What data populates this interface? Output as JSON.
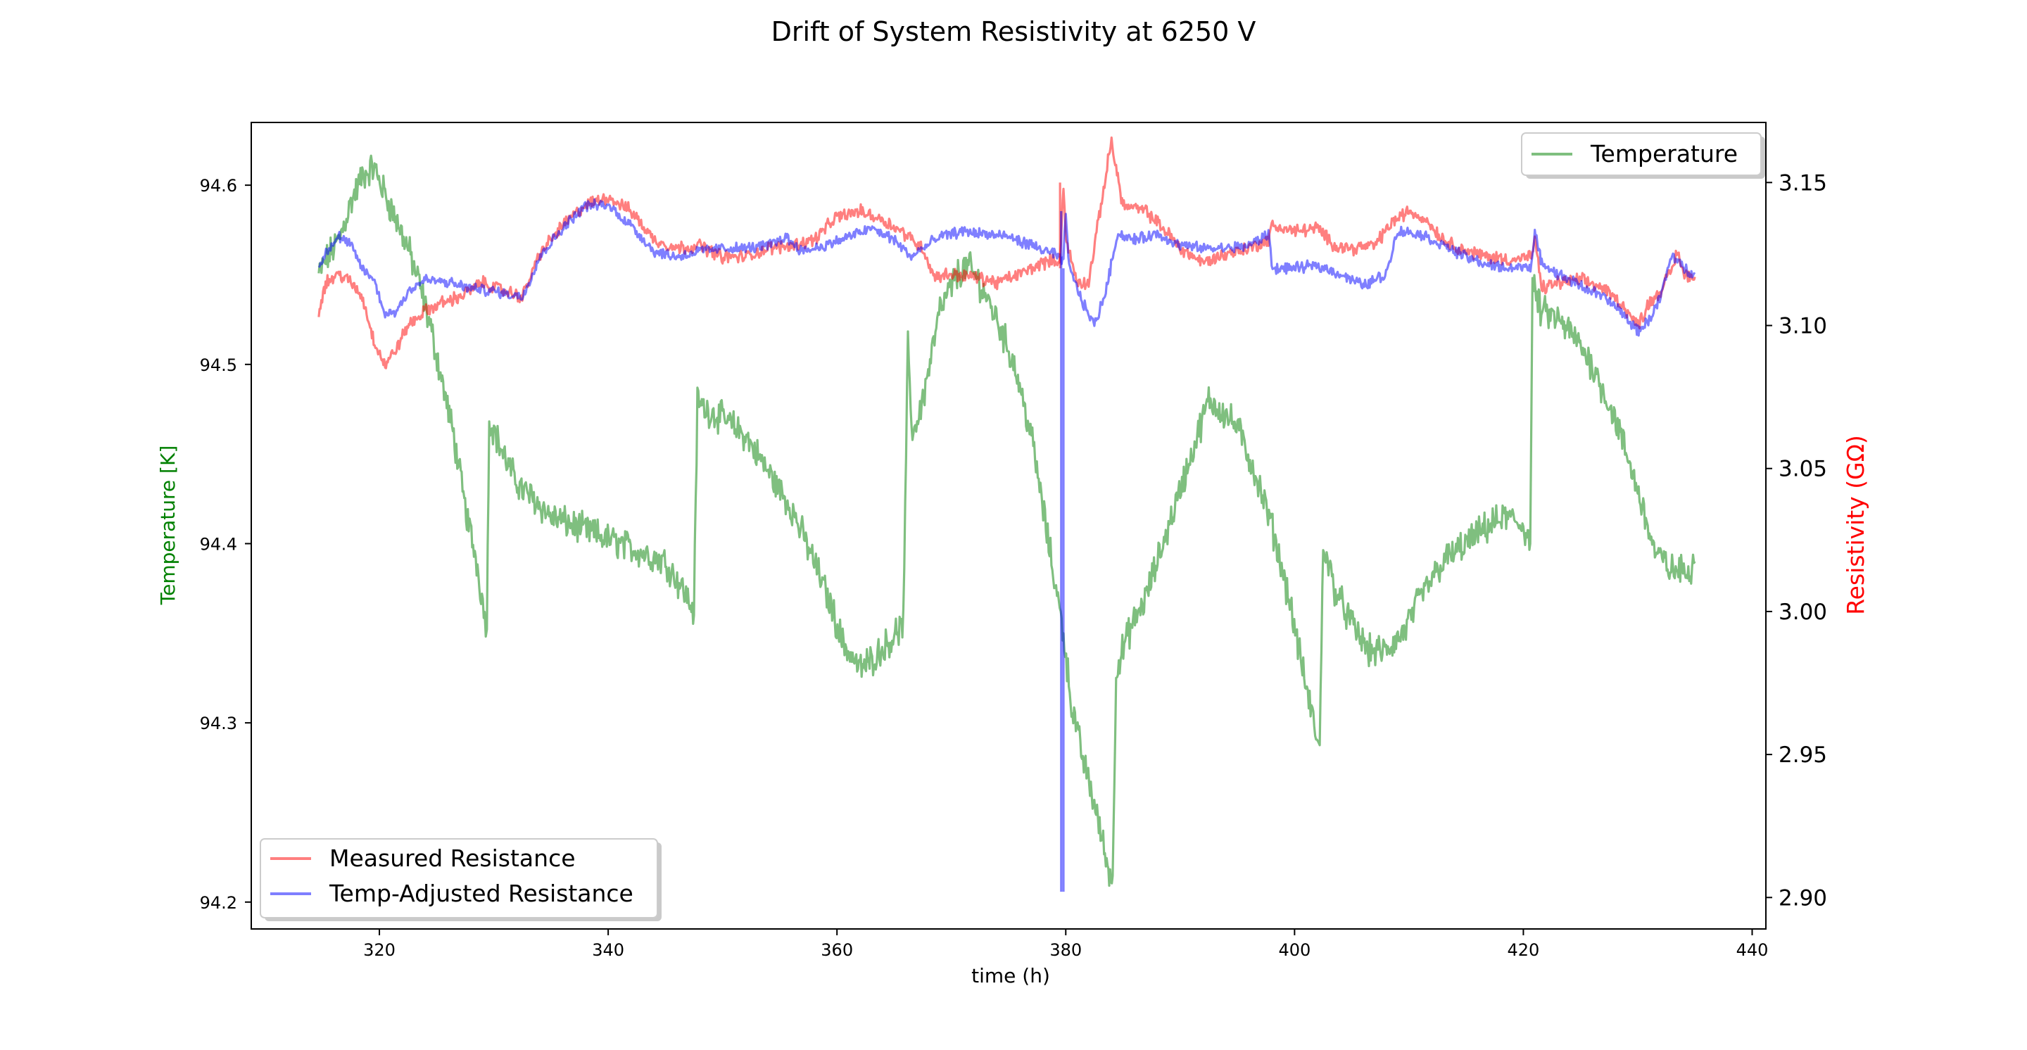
{
  "chart_data": {
    "type": "line",
    "title": "Drift of System Resistivity at 6250 V",
    "xlabel": "time (h)",
    "xlim": [
      308.8,
      441.2
    ],
    "xticks": [
      320,
      340,
      360,
      380,
      400,
      420,
      440
    ],
    "grid": false,
    "left_axis": {
      "label": "Temperature [K]",
      "label_color": "#008000",
      "ylim": [
        94.185,
        94.635
      ],
      "ticks": [
        94.2,
        94.3,
        94.4,
        94.5,
        94.6
      ]
    },
    "right_axis": {
      "label": "Resistivity (GΩ)",
      "label_color": "#ff0000",
      "ylim": [
        2.889,
        3.171
      ],
      "ticks": [
        2.9,
        2.95,
        3.0,
        3.05,
        3.1,
        3.15
      ],
      "tick_labels": [
        "2.90",
        "2.95",
        "3.00",
        "3.05",
        "3.10",
        "3.15"
      ]
    },
    "legends": [
      {
        "placement": "upper right",
        "entries": [
          "Temperature"
        ]
      },
      {
        "placement": "lower left",
        "entries": [
          "Measured Resistance",
          "Temp-Adjusted Resistance"
        ]
      }
    ],
    "series": [
      {
        "name": "Temperature",
        "axis": "left",
        "color": "#008000",
        "alpha": 0.5,
        "noise": 0.007,
        "points": [
          [
            314.7,
            94.55
          ],
          [
            315.5,
            94.56
          ],
          [
            316.5,
            94.57
          ],
          [
            317.5,
            94.59
          ],
          [
            318.5,
            94.605
          ],
          [
            319.5,
            94.61
          ],
          [
            320.5,
            94.595
          ],
          [
            321.5,
            94.58
          ],
          [
            322.5,
            94.565
          ],
          [
            323.5,
            94.545
          ],
          [
            324.5,
            94.52
          ],
          [
            325.5,
            94.49
          ],
          [
            326.5,
            94.46
          ],
          [
            327.5,
            94.42
          ],
          [
            328.5,
            94.39
          ],
          [
            329.2,
            94.36
          ],
          [
            329.4,
            94.355
          ],
          [
            329.6,
            94.47
          ],
          [
            330.5,
            94.455
          ],
          [
            331.5,
            94.44
          ],
          [
            332.5,
            94.43
          ],
          [
            333.5,
            94.425
          ],
          [
            335,
            94.415
          ],
          [
            337,
            94.41
          ],
          [
            339,
            94.405
          ],
          [
            341,
            94.4
          ],
          [
            343,
            94.395
          ],
          [
            345,
            94.39
          ],
          [
            346.5,
            94.375
          ],
          [
            347.5,
            94.362
          ],
          [
            347.8,
            94.48
          ],
          [
            348.5,
            94.475
          ],
          [
            350,
            94.47
          ],
          [
            352,
            94.46
          ],
          [
            354,
            94.44
          ],
          [
            356,
            94.42
          ],
          [
            358,
            94.39
          ],
          [
            359.5,
            94.365
          ],
          [
            360.5,
            94.345
          ],
          [
            362,
            94.33
          ],
          [
            363,
            94.335
          ],
          [
            364.5,
            94.345
          ],
          [
            365.8,
            94.355
          ],
          [
            366.2,
            94.51
          ],
          [
            366.6,
            94.46
          ],
          [
            367.5,
            94.48
          ],
          [
            369,
            94.53
          ],
          [
            370.5,
            94.55
          ],
          [
            371.5,
            94.555
          ],
          [
            372.5,
            94.545
          ],
          [
            374,
            94.525
          ],
          [
            375.5,
            94.5
          ],
          [
            377,
            94.46
          ],
          [
            378.5,
            94.4
          ],
          [
            379.8,
            94.35
          ],
          [
            380.5,
            94.31
          ],
          [
            381.5,
            94.28
          ],
          [
            382.5,
            94.255
          ],
          [
            383.5,
            94.225
          ],
          [
            384.1,
            94.21
          ],
          [
            384.4,
            94.33
          ],
          [
            385.5,
            94.35
          ],
          [
            387,
            94.37
          ],
          [
            388.5,
            94.4
          ],
          [
            390,
            94.43
          ],
          [
            391.5,
            94.46
          ],
          [
            392.5,
            94.48
          ],
          [
            393.5,
            94.475
          ],
          [
            395,
            94.465
          ],
          [
            396.5,
            94.44
          ],
          [
            398,
            94.41
          ],
          [
            399.5,
            94.37
          ],
          [
            401,
            94.32
          ],
          [
            402.2,
            94.285
          ],
          [
            402.5,
            94.4
          ],
          [
            403.5,
            94.375
          ],
          [
            405,
            94.355
          ],
          [
            406.5,
            94.34
          ],
          [
            408,
            94.34
          ],
          [
            409.5,
            94.35
          ],
          [
            411,
            94.37
          ],
          [
            413,
            94.39
          ],
          [
            415,
            94.4
          ],
          [
            417,
            94.41
          ],
          [
            418.5,
            94.415
          ],
          [
            420,
            94.41
          ],
          [
            420.6,
            94.4
          ],
          [
            420.8,
            94.545
          ],
          [
            421.5,
            94.53
          ],
          [
            423,
            94.525
          ],
          [
            424.5,
            94.515
          ],
          [
            426,
            94.5
          ],
          [
            428,
            94.47
          ],
          [
            430,
            94.43
          ],
          [
            431.5,
            94.395
          ],
          [
            433,
            94.385
          ],
          [
            434.5,
            94.385
          ],
          [
            435,
            94.39
          ]
        ]
      },
      {
        "name": "Measured Resistance",
        "axis": "right",
        "color": "#ff0000",
        "alpha": 0.5,
        "noise": 0.0018,
        "points": [
          [
            314.7,
            3.105
          ],
          [
            315.3,
            3.115
          ],
          [
            316.5,
            3.118
          ],
          [
            317.5,
            3.115
          ],
          [
            318.5,
            3.11
          ],
          [
            319.5,
            3.095
          ],
          [
            320.5,
            3.086
          ],
          [
            321.5,
            3.092
          ],
          [
            322.5,
            3.1
          ],
          [
            324,
            3.105
          ],
          [
            325.5,
            3.108
          ],
          [
            327,
            3.11
          ],
          [
            329,
            3.115
          ],
          [
            331,
            3.112
          ],
          [
            332.5,
            3.11
          ],
          [
            334,
            3.125
          ],
          [
            336,
            3.135
          ],
          [
            338,
            3.142
          ],
          [
            340,
            3.145
          ],
          [
            342,
            3.14
          ],
          [
            344,
            3.13
          ],
          [
            346,
            3.127
          ],
          [
            348,
            3.128
          ],
          [
            350,
            3.124
          ],
          [
            352,
            3.124
          ],
          [
            354,
            3.127
          ],
          [
            356,
            3.128
          ],
          [
            358,
            3.13
          ],
          [
            360,
            3.138
          ],
          [
            362,
            3.14
          ],
          [
            364,
            3.137
          ],
          [
            366,
            3.132
          ],
          [
            367.5,
            3.127
          ],
          [
            368.5,
            3.117
          ],
          [
            370,
            3.118
          ],
          [
            372,
            3.117
          ],
          [
            374,
            3.115
          ],
          [
            376,
            3.118
          ],
          [
            378,
            3.122
          ],
          [
            379.5,
            3.123
          ],
          [
            379.8,
            3.15
          ],
          [
            380,
            3.13
          ],
          [
            381,
            3.115
          ],
          [
            382,
            3.115
          ],
          [
            383,
            3.14
          ],
          [
            384,
            3.165
          ],
          [
            384.4,
            3.155
          ],
          [
            385,
            3.142
          ],
          [
            387,
            3.14
          ],
          [
            389,
            3.132
          ],
          [
            390,
            3.127
          ],
          [
            392,
            3.122
          ],
          [
            394,
            3.125
          ],
          [
            396,
            3.127
          ],
          [
            397.8,
            3.13
          ],
          [
            398,
            3.135
          ],
          [
            400,
            3.133
          ],
          [
            402,
            3.134
          ],
          [
            403.5,
            3.128
          ],
          [
            405,
            3.127
          ],
          [
            407,
            3.128
          ],
          [
            408.5,
            3.136
          ],
          [
            410,
            3.14
          ],
          [
            411.5,
            3.137
          ],
          [
            413,
            3.13
          ],
          [
            415,
            3.126
          ],
          [
            417,
            3.124
          ],
          [
            419,
            3.123
          ],
          [
            420.7,
            3.124
          ],
          [
            421,
            3.13
          ],
          [
            421.6,
            3.113
          ],
          [
            423,
            3.115
          ],
          [
            425,
            3.116
          ],
          [
            427,
            3.113
          ],
          [
            428.5,
            3.108
          ],
          [
            430,
            3.1
          ],
          [
            431,
            3.108
          ],
          [
            432,
            3.112
          ],
          [
            433,
            3.12
          ],
          [
            433.5,
            3.126
          ],
          [
            434,
            3.118
          ],
          [
            435,
            3.117
          ]
        ]
      },
      {
        "name": "Temp-Adjusted Resistance",
        "axis": "right",
        "color": "#0000ff",
        "alpha": 0.5,
        "noise": 0.0015,
        "points": [
          [
            314.7,
            3.12
          ],
          [
            315.5,
            3.127
          ],
          [
            316.5,
            3.131
          ],
          [
            317.5,
            3.128
          ],
          [
            318.5,
            3.12
          ],
          [
            319.5,
            3.116
          ],
          [
            320.5,
            3.104
          ],
          [
            321.5,
            3.105
          ],
          [
            322.5,
            3.112
          ],
          [
            324,
            3.116
          ],
          [
            326,
            3.115
          ],
          [
            328,
            3.113
          ],
          [
            330,
            3.112
          ],
          [
            332.5,
            3.11
          ],
          [
            334,
            3.124
          ],
          [
            336,
            3.134
          ],
          [
            338,
            3.142
          ],
          [
            340,
            3.142
          ],
          [
            342,
            3.135
          ],
          [
            344,
            3.126
          ],
          [
            346,
            3.124
          ],
          [
            348,
            3.126
          ],
          [
            350,
            3.127
          ],
          [
            352,
            3.127
          ],
          [
            354,
            3.128
          ],
          [
            355.5,
            3.131
          ],
          [
            357,
            3.126
          ],
          [
            359,
            3.128
          ],
          [
            361,
            3.131
          ],
          [
            363,
            3.134
          ],
          [
            365,
            3.13
          ],
          [
            366.5,
            3.124
          ],
          [
            367.5,
            3.127
          ],
          [
            369,
            3.131
          ],
          [
            371,
            3.133
          ],
          [
            373,
            3.132
          ],
          [
            375,
            3.131
          ],
          [
            377,
            3.128
          ],
          [
            379,
            3.125
          ],
          [
            379.8,
            3.122
          ],
          [
            380,
            3.14
          ],
          [
            380.3,
            3.12
          ],
          [
            381.5,
            3.108
          ],
          [
            382.5,
            3.1
          ],
          [
            383.5,
            3.112
          ],
          [
            384.5,
            3.132
          ],
          [
            386,
            3.13
          ],
          [
            388,
            3.132
          ],
          [
            390,
            3.128
          ],
          [
            392,
            3.127
          ],
          [
            394,
            3.127
          ],
          [
            396,
            3.128
          ],
          [
            397.8,
            3.132
          ],
          [
            398,
            3.12
          ],
          [
            400,
            3.12
          ],
          [
            402,
            3.121
          ],
          [
            404,
            3.118
          ],
          [
            406,
            3.114
          ],
          [
            408,
            3.118
          ],
          [
            409,
            3.133
          ],
          [
            411,
            3.132
          ],
          [
            413,
            3.128
          ],
          [
            415,
            3.124
          ],
          [
            417,
            3.121
          ],
          [
            419,
            3.12
          ],
          [
            420.7,
            3.121
          ],
          [
            421,
            3.132
          ],
          [
            421.6,
            3.122
          ],
          [
            423,
            3.118
          ],
          [
            425,
            3.114
          ],
          [
            427,
            3.11
          ],
          [
            428.5,
            3.105
          ],
          [
            430,
            3.098
          ],
          [
            431,
            3.102
          ],
          [
            432,
            3.11
          ],
          [
            433,
            3.125
          ],
          [
            434,
            3.12
          ],
          [
            435,
            3.118
          ]
        ]
      }
    ],
    "spikes": [
      {
        "series": "Measured Resistance",
        "x": 379.5,
        "from": 3.12,
        "to": 3.15
      },
      {
        "series": "Temp-Adjusted Resistance",
        "x": 379.6,
        "from": 3.14,
        "to": 2.902
      },
      {
        "series": "Temp-Adjusted Resistance",
        "x": 379.8,
        "from": 2.902,
        "to": 3.12
      }
    ]
  }
}
